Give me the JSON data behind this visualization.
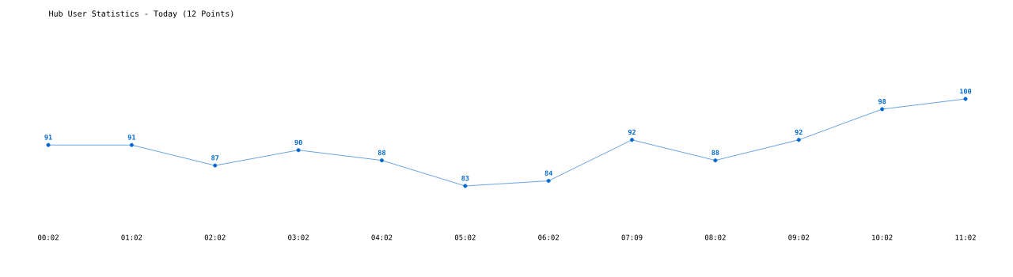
{
  "chart_data": {
    "type": "line",
    "title": "Hub User Statistics - Today (12 Points)",
    "categories": [
      "00:02",
      "01:02",
      "02:02",
      "03:02",
      "04:02",
      "05:02",
      "06:02",
      "07:09",
      "08:02",
      "09:02",
      "10:02",
      "11:02"
    ],
    "values": [
      91,
      91,
      87,
      90,
      88,
      83,
      84,
      92,
      88,
      92,
      98,
      100
    ],
    "color": "#0066cc",
    "data_labels": true,
    "marker": "circle",
    "line_style": "solid"
  }
}
